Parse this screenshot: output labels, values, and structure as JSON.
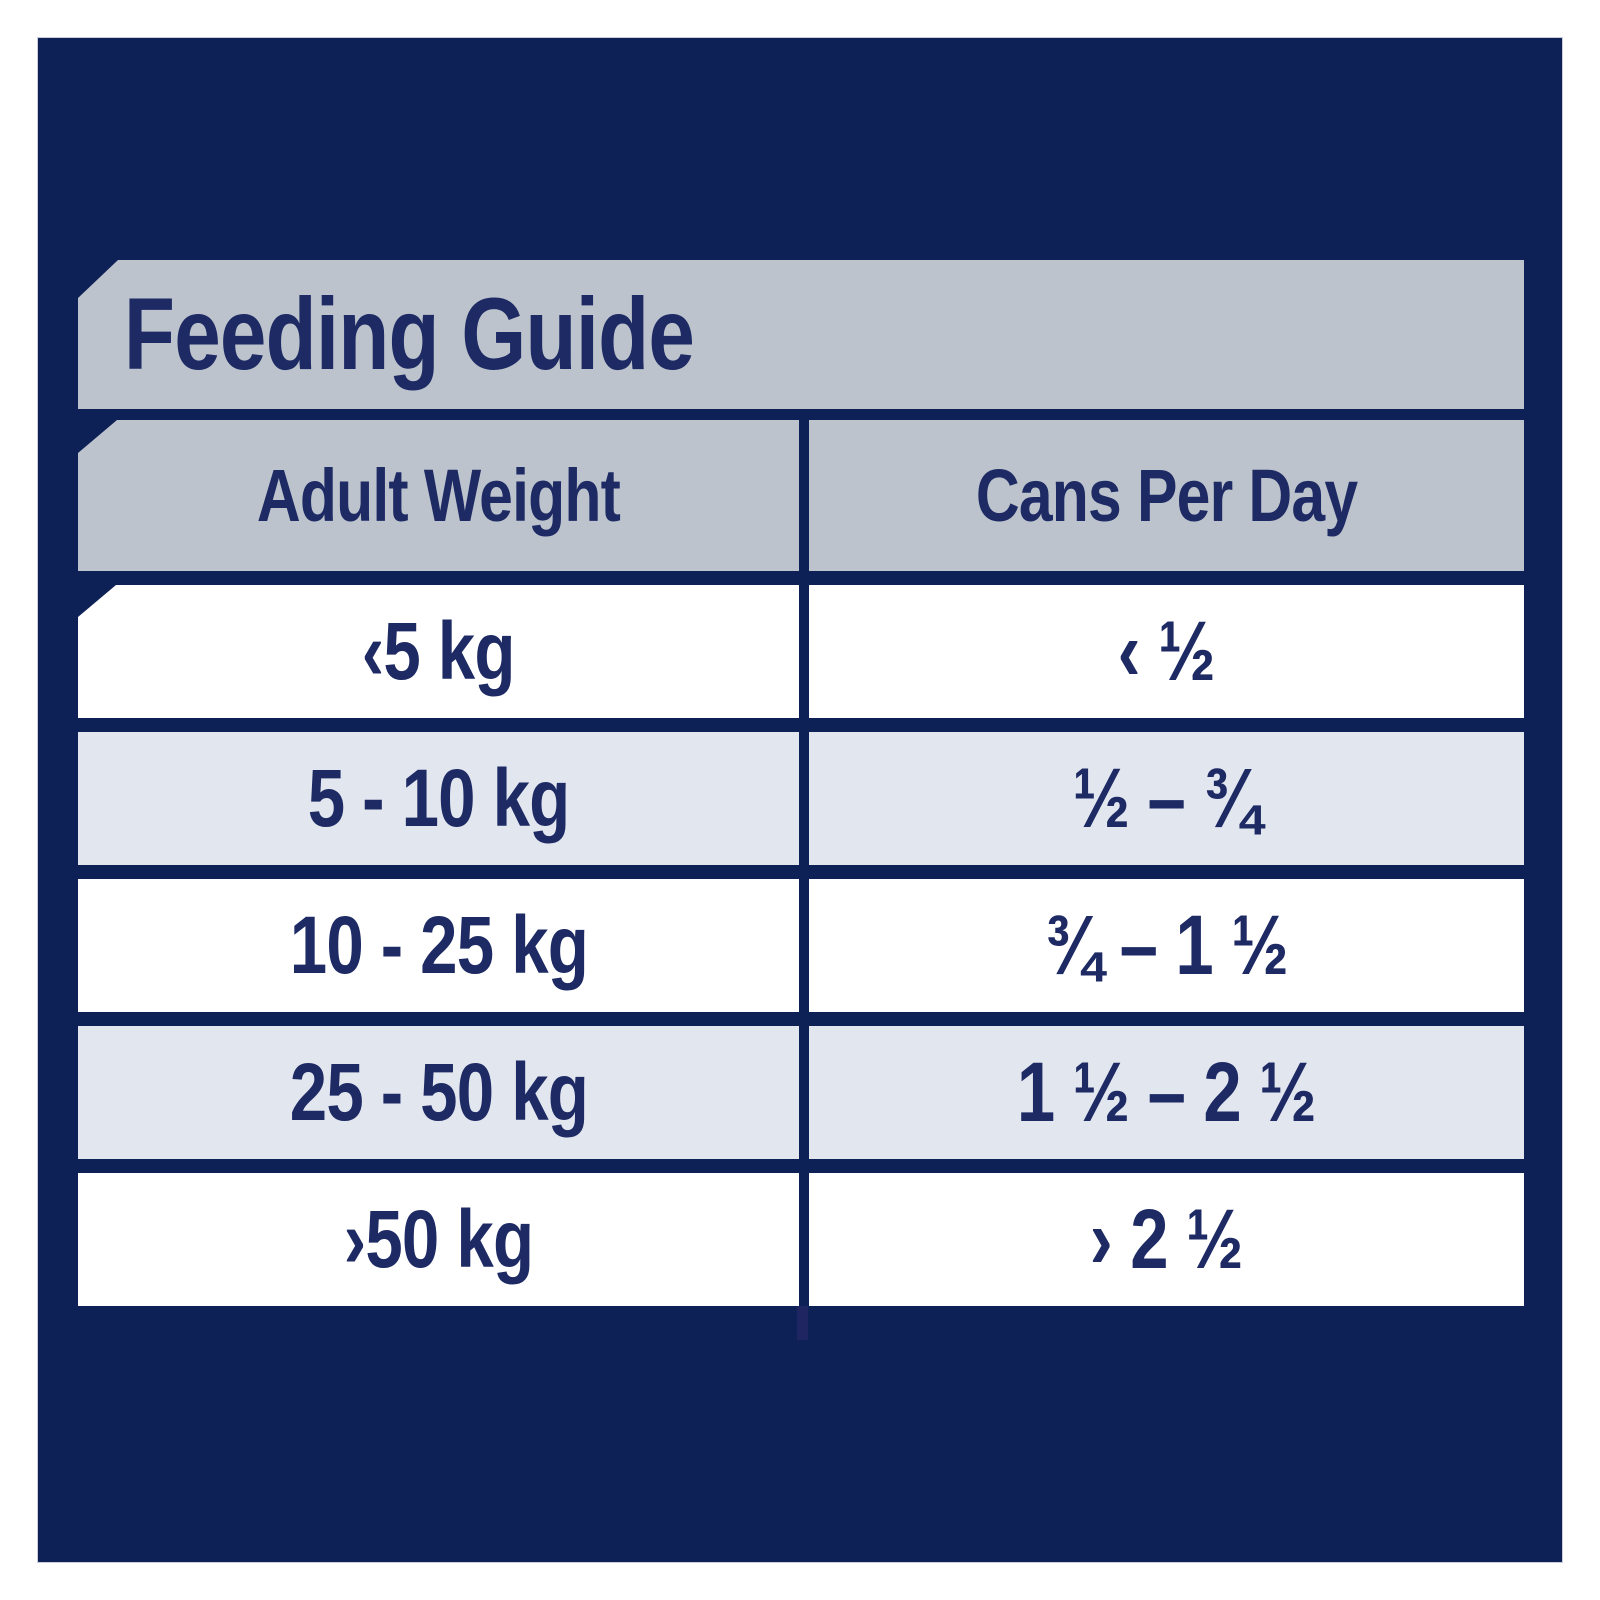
{
  "title": "Feeding Guide",
  "table": {
    "columns": [
      "Adult Weight",
      "Cans Per Day"
    ],
    "rows": [
      {
        "weight": "‹5 kg",
        "cans": "‹ ½"
      },
      {
        "weight": "5 - 10 kg",
        "cans": "½ – ¾"
      },
      {
        "weight": "10 - 25 kg",
        "cans": "¾ – 1 ½"
      },
      {
        "weight": "25 - 50 kg",
        "cans": "1 ½ – 2 ½"
      },
      {
        "weight": "›50 kg",
        "cans": "› 2 ½"
      }
    ]
  },
  "colors": {
    "background_navy": "#0e2156",
    "bar_gray": "#bcc3cc",
    "row_light": "#e2e6ef",
    "row_white": "#ffffff",
    "text_navy": "#1d2a64",
    "divider_stub": "#1e2560",
    "outer_margin_white": "#ffffff"
  }
}
